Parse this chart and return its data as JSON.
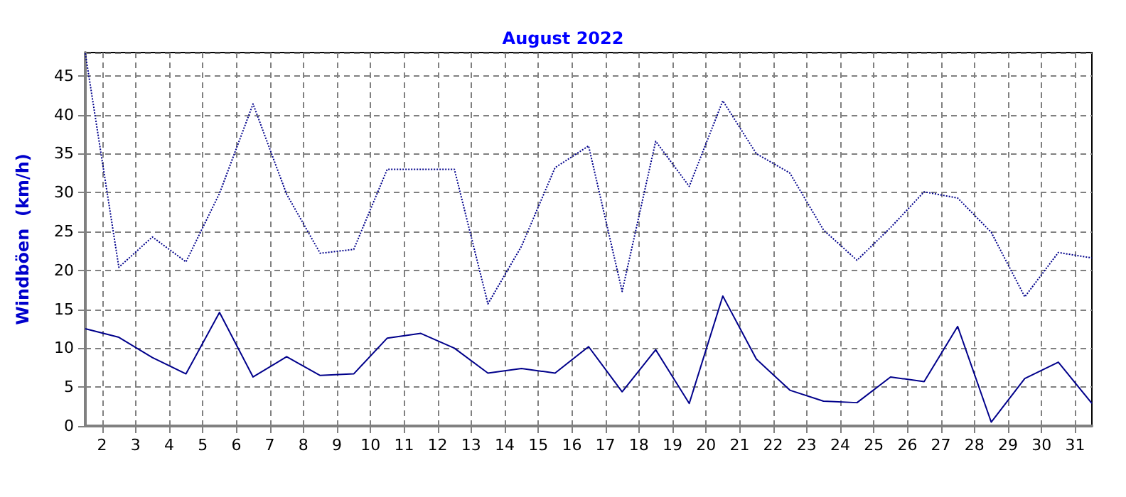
{
  "chart_data": {
    "type": "line",
    "title": "August 2022",
    "ylabel": "Windböen  (km/h)",
    "x": [
      1,
      2,
      3,
      4,
      5,
      6,
      7,
      8,
      9,
      10,
      11,
      12,
      13,
      14,
      15,
      16,
      17,
      18,
      19,
      20,
      21,
      22,
      23,
      24,
      25,
      26,
      27,
      28,
      29,
      30,
      31
    ],
    "xlim": [
      1,
      31
    ],
    "xticks": [
      {
        "value": 1.5,
        "label": "2"
      },
      {
        "value": 2.5,
        "label": "3"
      },
      {
        "value": 3.5,
        "label": "4"
      },
      {
        "value": 4.5,
        "label": "5"
      },
      {
        "value": 5.5,
        "label": "6"
      },
      {
        "value": 6.5,
        "label": "7"
      },
      {
        "value": 7.5,
        "label": "8"
      },
      {
        "value": 8.5,
        "label": "9"
      },
      {
        "value": 9.5,
        "label": "10"
      },
      {
        "value": 10.5,
        "label": "11"
      },
      {
        "value": 11.5,
        "label": "12"
      },
      {
        "value": 12.5,
        "label": "13"
      },
      {
        "value": 13.5,
        "label": "14"
      },
      {
        "value": 14.5,
        "label": "15"
      },
      {
        "value": 15.5,
        "label": "16"
      },
      {
        "value": 16.5,
        "label": "17"
      },
      {
        "value": 17.5,
        "label": "18"
      },
      {
        "value": 18.5,
        "label": "19"
      },
      {
        "value": 19.5,
        "label": "20"
      },
      {
        "value": 20.5,
        "label": "21"
      },
      {
        "value": 21.5,
        "label": "22"
      },
      {
        "value": 22.5,
        "label": "23"
      },
      {
        "value": 23.5,
        "label": "24"
      },
      {
        "value": 24.5,
        "label": "25"
      },
      {
        "value": 25.5,
        "label": "26"
      },
      {
        "value": 26.5,
        "label": "27"
      },
      {
        "value": 27.5,
        "label": "28"
      },
      {
        "value": 28.5,
        "label": "29"
      },
      {
        "value": 29.5,
        "label": "30"
      },
      {
        "value": 30.5,
        "label": "31"
      }
    ],
    "ylim": [
      0,
      48
    ],
    "yticks": [
      0,
      5,
      10,
      15,
      20,
      25,
      30,
      35,
      40,
      45
    ],
    "grid": true,
    "marker": "none",
    "series": [
      {
        "color": "#00008b",
        "line_style": "solid",
        "values": [
          12.5,
          11.4,
          8.8,
          6.7,
          14.6,
          6.3,
          8.9,
          6.5,
          6.7,
          11.3,
          11.9,
          10.0,
          6.8,
          7.4,
          6.8,
          10.2,
          4.4,
          9.8,
          2.9,
          16.7,
          8.6,
          4.6,
          3.2,
          3.0,
          6.3,
          5.7,
          12.8,
          0.5,
          6.1,
          8.2,
          2.9
        ]
      },
      {
        "color": "#00008b",
        "line_style": "dotted",
        "values": [
          47.9,
          20.4,
          24.3,
          21.1,
          29.9,
          41.4,
          29.8,
          22.2,
          22.7,
          33.0,
          33.0,
          33.0,
          15.7,
          23.1,
          33.2,
          36.0,
          17.3,
          36.6,
          30.8,
          41.8,
          35.0,
          32.5,
          25.2,
          21.3,
          25.5,
          30.1,
          29.3,
          24.9,
          16.6,
          22.3,
          21.6
        ]
      }
    ]
  }
}
